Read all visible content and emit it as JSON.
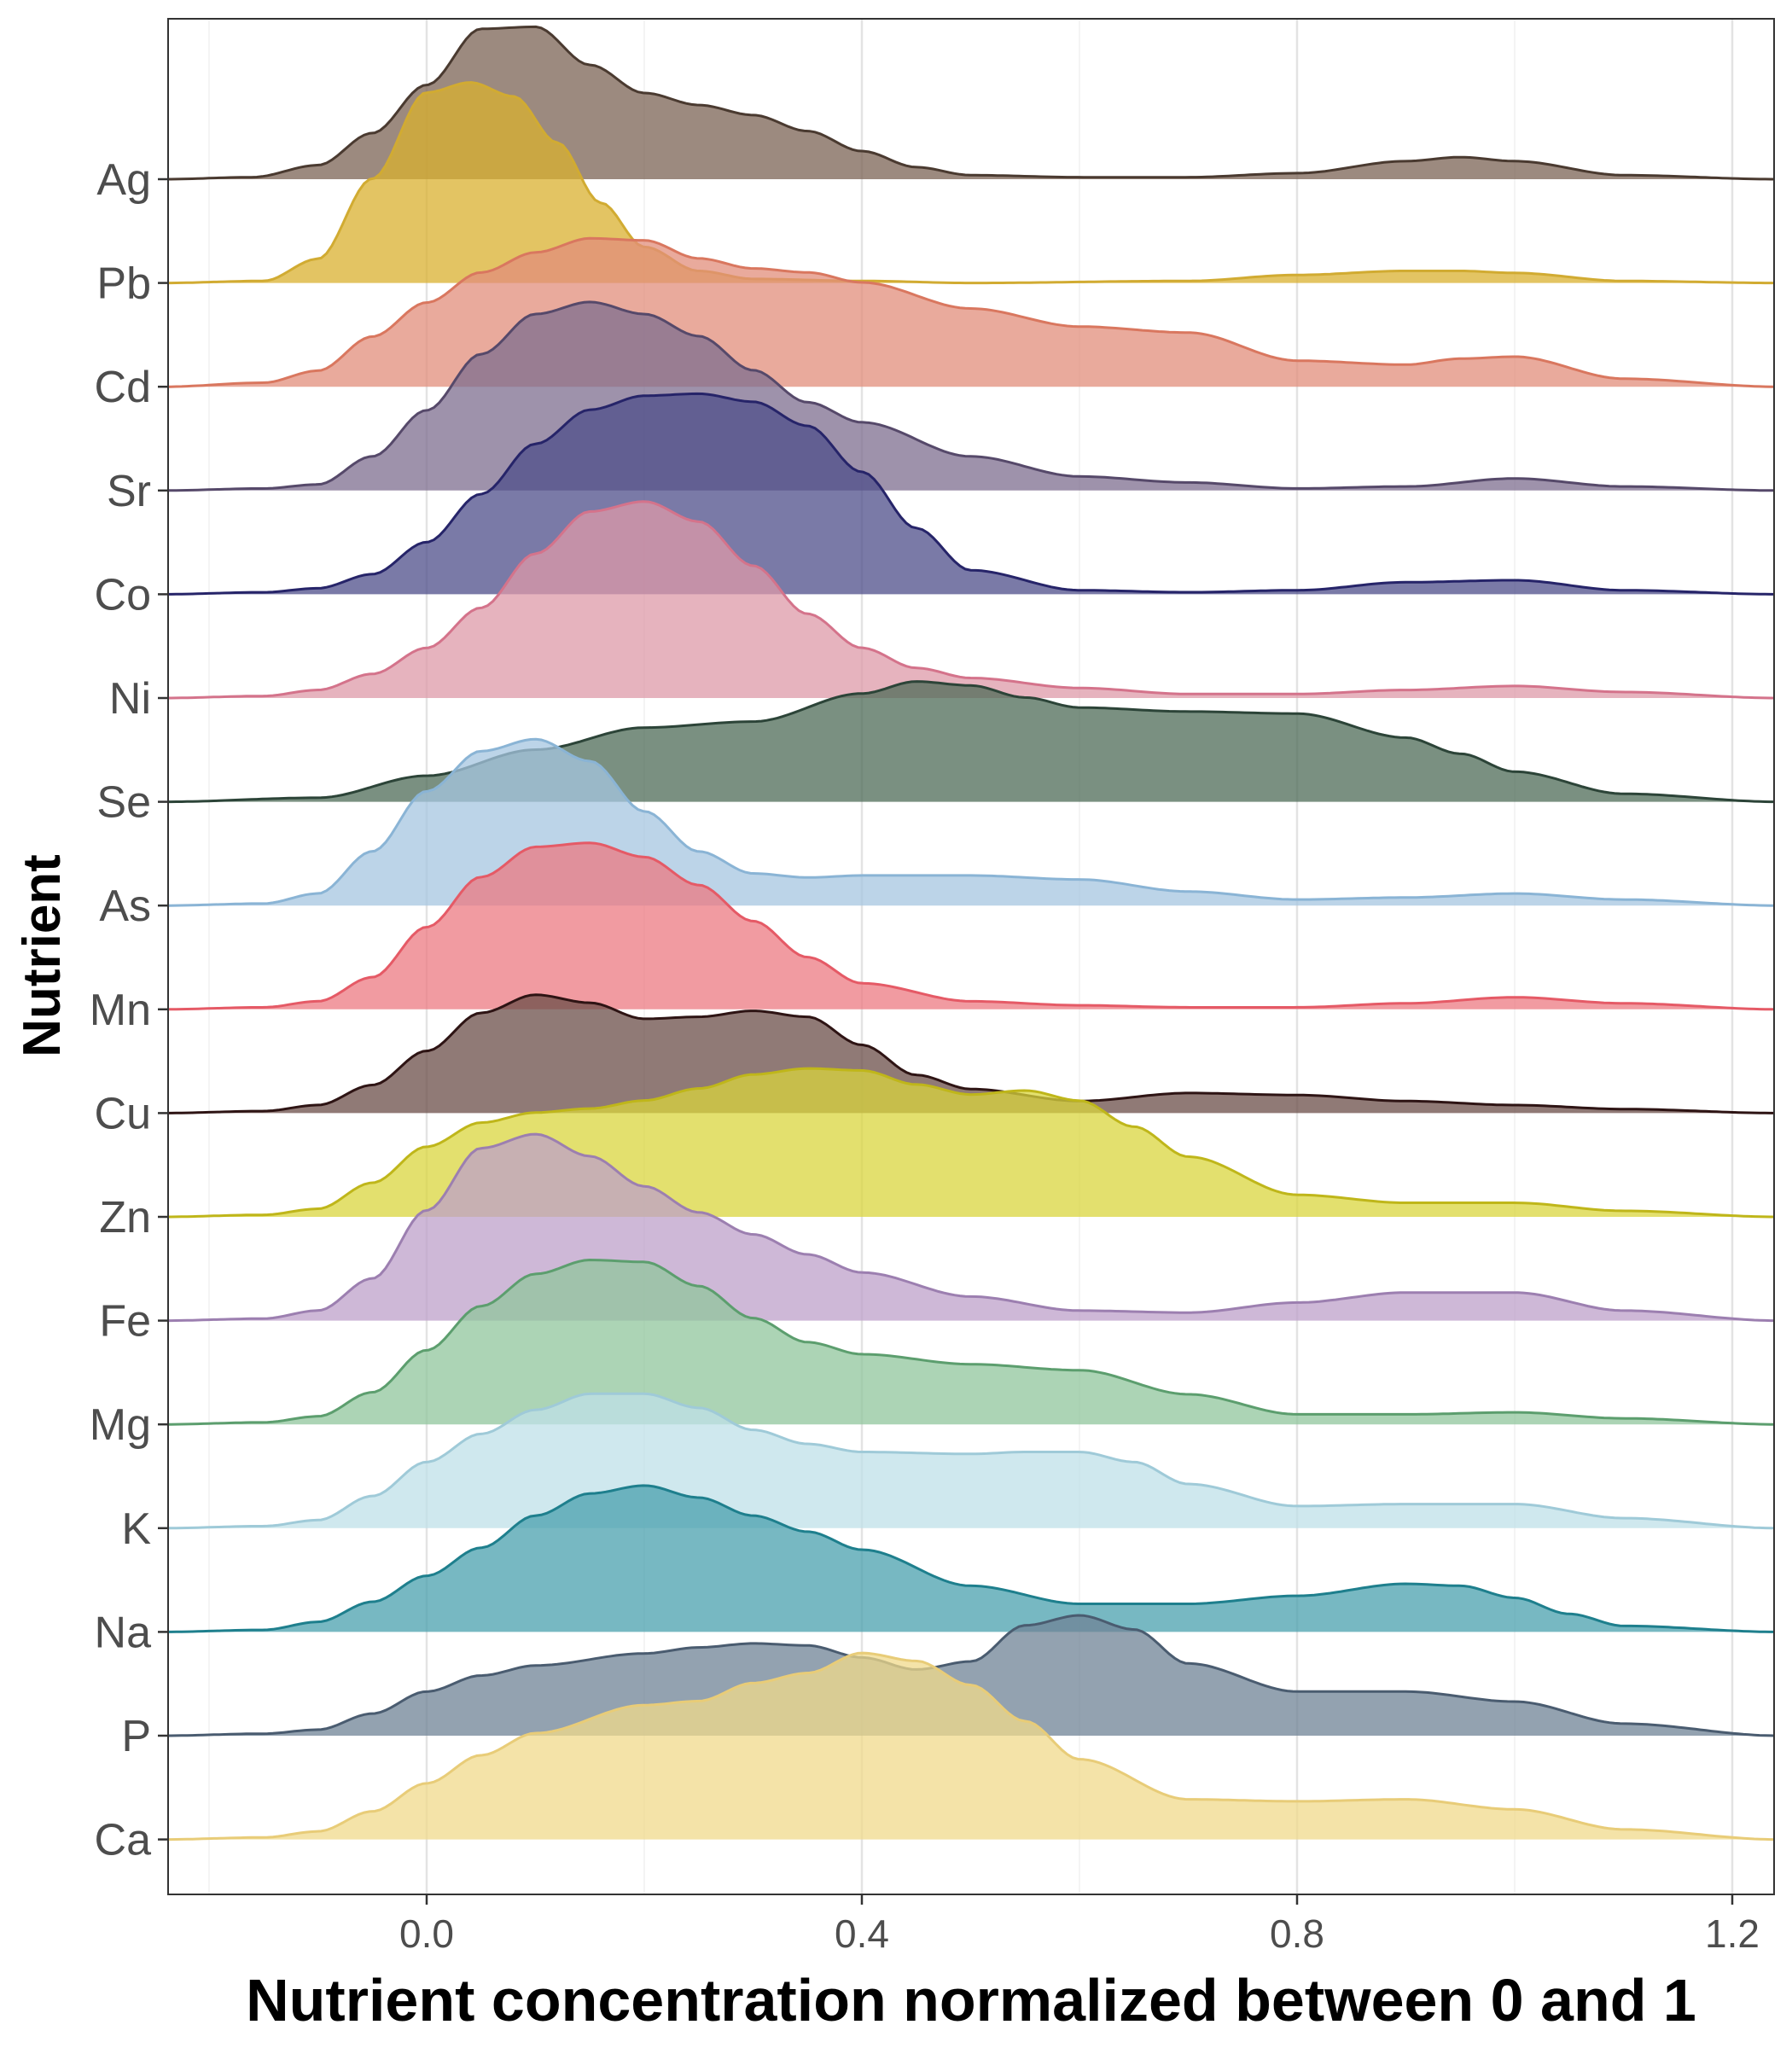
{
  "chart_data": {
    "type": "area",
    "subtype": "ridgeline-density",
    "xlabel": "Nutrient concentration normalized between 0 and 1",
    "ylabel": "Nutrient",
    "xlim": [
      -0.24,
      1.24
    ],
    "x_ticks": [
      0.0,
      0.4,
      0.8,
      1.2
    ],
    "x_tick_labels": [
      "0.0",
      "0.4",
      "0.8",
      "1.2"
    ],
    "grid": "vertical major and minor gridlines",
    "categories": [
      "Ag",
      "Pb",
      "Cd",
      "Sr",
      "Co",
      "Ni",
      "Se",
      "As",
      "Mn",
      "Cu",
      "Zn",
      "Fe",
      "Mg",
      "K",
      "Na",
      "P",
      "Ca"
    ],
    "series": [
      {
        "name": "Ag",
        "fill": "#7b6354",
        "line": "#4a3a30",
        "x": [
          -0.24,
          -0.16,
          -0.1,
          -0.05,
          0.0,
          0.05,
          0.1,
          0.15,
          0.2,
          0.25,
          0.3,
          0.35,
          0.4,
          0.45,
          0.5,
          0.6,
          0.7,
          0.8,
          0.9,
          0.95,
          1.0,
          1.1,
          1.24
        ],
        "density": [
          0,
          0.01,
          0.07,
          0.23,
          0.47,
          0.75,
          0.76,
          0.57,
          0.43,
          0.37,
          0.32,
          0.24,
          0.14,
          0.06,
          0.02,
          0.01,
          0.01,
          0.03,
          0.09,
          0.11,
          0.09,
          0.02,
          0
        ]
      },
      {
        "name": "Pb",
        "fill": "#d9b02f",
        "line": "#d1ab32",
        "x": [
          -0.24,
          -0.15,
          -0.1,
          -0.05,
          0.0,
          0.04,
          0.08,
          0.12,
          0.16,
          0.2,
          0.25,
          0.3,
          0.4,
          0.5,
          0.7,
          0.8,
          0.9,
          0.95,
          1.0,
          1.1,
          1.24
        ],
        "density": [
          0,
          0.01,
          0.12,
          0.52,
          0.95,
          1.0,
          0.93,
          0.7,
          0.4,
          0.18,
          0.06,
          0.02,
          0.01,
          0,
          0.01,
          0.04,
          0.06,
          0.06,
          0.05,
          0.01,
          0
        ]
      },
      {
        "name": "Cd",
        "fill": "#e28e7b",
        "line": "#d9775f",
        "x": [
          -0.24,
          -0.15,
          -0.1,
          -0.05,
          0.0,
          0.05,
          0.1,
          0.15,
          0.2,
          0.25,
          0.3,
          0.35,
          0.4,
          0.5,
          0.6,
          0.7,
          0.8,
          0.9,
          0.95,
          1.0,
          1.1,
          1.24
        ],
        "density": [
          0,
          0.02,
          0.08,
          0.25,
          0.42,
          0.57,
          0.67,
          0.74,
          0.73,
          0.64,
          0.59,
          0.57,
          0.52,
          0.39,
          0.3,
          0.27,
          0.13,
          0.11,
          0.14,
          0.15,
          0.04,
          0
        ]
      },
      {
        "name": "Sr",
        "fill": "#7d6e8f",
        "line": "#56496a",
        "x": [
          -0.24,
          -0.15,
          -0.1,
          -0.05,
          0.0,
          0.05,
          0.1,
          0.15,
          0.2,
          0.25,
          0.3,
          0.35,
          0.4,
          0.5,
          0.6,
          0.7,
          0.8,
          0.9,
          1.0,
          1.1,
          1.24
        ],
        "density": [
          0,
          0.01,
          0.03,
          0.17,
          0.4,
          0.68,
          0.88,
          0.94,
          0.88,
          0.77,
          0.6,
          0.44,
          0.34,
          0.17,
          0.07,
          0.04,
          0.01,
          0.02,
          0.06,
          0.02,
          0
        ]
      },
      {
        "name": "Co",
        "fill": "#4e4d8a",
        "line": "#262469",
        "x": [
          -0.24,
          -0.15,
          -0.1,
          -0.05,
          0.0,
          0.05,
          0.1,
          0.15,
          0.2,
          0.25,
          0.3,
          0.35,
          0.4,
          0.45,
          0.5,
          0.6,
          0.7,
          0.8,
          0.9,
          1.0,
          1.1,
          1.24
        ],
        "density": [
          0,
          0.01,
          0.03,
          0.1,
          0.26,
          0.5,
          0.75,
          0.92,
          0.99,
          1.0,
          0.96,
          0.84,
          0.61,
          0.33,
          0.12,
          0.02,
          0.01,
          0.02,
          0.06,
          0.07,
          0.02,
          0
        ]
      },
      {
        "name": "Ni",
        "fill": "#de99a8",
        "line": "#d4738b",
        "x": [
          -0.24,
          -0.15,
          -0.1,
          -0.05,
          0.0,
          0.05,
          0.1,
          0.15,
          0.2,
          0.25,
          0.3,
          0.35,
          0.4,
          0.45,
          0.5,
          0.6,
          0.7,
          0.8,
          0.9,
          1.0,
          1.1,
          1.24
        ],
        "density": [
          0,
          0.01,
          0.04,
          0.12,
          0.25,
          0.45,
          0.72,
          0.93,
          0.98,
          0.88,
          0.66,
          0.42,
          0.25,
          0.15,
          0.1,
          0.05,
          0.02,
          0.02,
          0.04,
          0.06,
          0.03,
          0
        ]
      },
      {
        "name": "Se",
        "fill": "#4d6b57",
        "line": "#2c4438",
        "x": [
          -0.24,
          -0.1,
          0.0,
          0.1,
          0.2,
          0.3,
          0.4,
          0.45,
          0.5,
          0.55,
          0.6,
          0.7,
          0.8,
          0.9,
          0.95,
          1.0,
          1.1,
          1.24
        ],
        "density": [
          0,
          0.02,
          0.13,
          0.26,
          0.37,
          0.4,
          0.54,
          0.6,
          0.58,
          0.52,
          0.47,
          0.45,
          0.44,
          0.32,
          0.24,
          0.15,
          0.04,
          0
        ]
      },
      {
        "name": "As",
        "fill": "#a5c6e0",
        "line": "#8ab4d5",
        "x": [
          -0.24,
          -0.15,
          -0.1,
          -0.05,
          0.0,
          0.05,
          0.1,
          0.15,
          0.2,
          0.25,
          0.3,
          0.35,
          0.4,
          0.5,
          0.6,
          0.7,
          0.8,
          0.9,
          1.0,
          1.1,
          1.24
        ],
        "density": [
          0,
          0.01,
          0.06,
          0.27,
          0.57,
          0.77,
          0.83,
          0.72,
          0.47,
          0.27,
          0.16,
          0.14,
          0.15,
          0.15,
          0.13,
          0.07,
          0.03,
          0.04,
          0.06,
          0.03,
          0
        ]
      },
      {
        "name": "Mn",
        "fill": "#ec7a82",
        "line": "#e55a66",
        "x": [
          -0.24,
          -0.15,
          -0.1,
          -0.05,
          0.0,
          0.05,
          0.1,
          0.15,
          0.2,
          0.25,
          0.3,
          0.35,
          0.4,
          0.5,
          0.6,
          0.7,
          0.8,
          0.9,
          1.0,
          1.1,
          1.24
        ],
        "density": [
          0,
          0.01,
          0.04,
          0.16,
          0.41,
          0.66,
          0.81,
          0.83,
          0.76,
          0.62,
          0.44,
          0.26,
          0.13,
          0.04,
          0.02,
          0.01,
          0.01,
          0.03,
          0.06,
          0.03,
          0
        ]
      },
      {
        "name": "Cu",
        "fill": "#6b4e48",
        "line": "#2e1414",
        "x": [
          -0.24,
          -0.15,
          -0.1,
          -0.05,
          0.0,
          0.05,
          0.1,
          0.15,
          0.2,
          0.25,
          0.3,
          0.35,
          0.4,
          0.45,
          0.5,
          0.6,
          0.7,
          0.8,
          0.9,
          1.0,
          1.1,
          1.24
        ],
        "density": [
          0,
          0.01,
          0.04,
          0.14,
          0.31,
          0.5,
          0.59,
          0.55,
          0.47,
          0.48,
          0.51,
          0.48,
          0.34,
          0.19,
          0.12,
          0.06,
          0.1,
          0.09,
          0.06,
          0.04,
          0.02,
          0
        ]
      },
      {
        "name": "Zn",
        "fill": "#d9d63d",
        "line": "#bfb61a",
        "x": [
          -0.24,
          -0.15,
          -0.1,
          -0.05,
          0.0,
          0.05,
          0.1,
          0.15,
          0.2,
          0.25,
          0.3,
          0.35,
          0.4,
          0.45,
          0.5,
          0.55,
          0.6,
          0.65,
          0.7,
          0.8,
          0.9,
          1.0,
          1.1,
          1.24
        ],
        "density": [
          0,
          0.01,
          0.04,
          0.17,
          0.35,
          0.47,
          0.52,
          0.54,
          0.58,
          0.64,
          0.71,
          0.74,
          0.73,
          0.66,
          0.61,
          0.63,
          0.58,
          0.45,
          0.3,
          0.11,
          0.07,
          0.07,
          0.03,
          0
        ]
      },
      {
        "name": "Fe",
        "fill": "#bea0c9",
        "line": "#9c7fb0",
        "x": [
          -0.24,
          -0.15,
          -0.1,
          -0.05,
          0.0,
          0.05,
          0.1,
          0.15,
          0.2,
          0.25,
          0.3,
          0.35,
          0.4,
          0.5,
          0.6,
          0.7,
          0.8,
          0.9,
          1.0,
          1.1,
          1.24
        ],
        "density": [
          0,
          0.01,
          0.05,
          0.21,
          0.55,
          0.86,
          0.93,
          0.82,
          0.67,
          0.54,
          0.43,
          0.33,
          0.24,
          0.12,
          0.05,
          0.04,
          0.09,
          0.14,
          0.14,
          0.05,
          0
        ]
      },
      {
        "name": "Mg",
        "fill": "#90c69c",
        "line": "#5c9e6e",
        "x": [
          -0.24,
          -0.15,
          -0.1,
          -0.05,
          0.0,
          0.05,
          0.1,
          0.15,
          0.2,
          0.25,
          0.3,
          0.35,
          0.4,
          0.5,
          0.6,
          0.7,
          0.8,
          0.9,
          1.0,
          1.1,
          1.24
        ],
        "density": [
          0,
          0.01,
          0.04,
          0.16,
          0.37,
          0.59,
          0.75,
          0.82,
          0.81,
          0.69,
          0.53,
          0.41,
          0.35,
          0.3,
          0.27,
          0.15,
          0.05,
          0.05,
          0.06,
          0.03,
          0
        ]
      },
      {
        "name": "K",
        "fill": "#bfe0e8",
        "line": "#9fcad8",
        "x": [
          -0.24,
          -0.15,
          -0.1,
          -0.05,
          0.0,
          0.05,
          0.1,
          0.15,
          0.2,
          0.25,
          0.3,
          0.35,
          0.4,
          0.5,
          0.55,
          0.6,
          0.65,
          0.7,
          0.8,
          0.9,
          1.0,
          1.1,
          1.24
        ],
        "density": [
          0,
          0.01,
          0.04,
          0.16,
          0.33,
          0.47,
          0.59,
          0.67,
          0.67,
          0.6,
          0.49,
          0.42,
          0.38,
          0.37,
          0.38,
          0.38,
          0.33,
          0.22,
          0.11,
          0.12,
          0.12,
          0.05,
          0
        ]
      },
      {
        "name": "Na",
        "fill": "#4aa0ad",
        "line": "#1e7f8d",
        "x": [
          -0.24,
          -0.15,
          -0.1,
          -0.05,
          0.0,
          0.05,
          0.1,
          0.15,
          0.2,
          0.25,
          0.3,
          0.35,
          0.4,
          0.5,
          0.6,
          0.7,
          0.8,
          0.9,
          0.95,
          1.0,
          1.05,
          1.1,
          1.24
        ],
        "density": [
          0,
          0.01,
          0.05,
          0.15,
          0.28,
          0.42,
          0.58,
          0.69,
          0.73,
          0.67,
          0.58,
          0.5,
          0.41,
          0.23,
          0.14,
          0.14,
          0.18,
          0.24,
          0.23,
          0.17,
          0.09,
          0.03,
          0
        ]
      },
      {
        "name": "P",
        "fill": "#6f8396",
        "line": "#4a5c70",
        "x": [
          -0.24,
          -0.15,
          -0.1,
          -0.05,
          0.0,
          0.05,
          0.1,
          0.2,
          0.25,
          0.3,
          0.35,
          0.4,
          0.45,
          0.5,
          0.55,
          0.6,
          0.65,
          0.7,
          0.8,
          0.9,
          1.0,
          1.1,
          1.24
        ],
        "density": [
          0,
          0.01,
          0.03,
          0.11,
          0.22,
          0.3,
          0.35,
          0.41,
          0.44,
          0.46,
          0.45,
          0.39,
          0.33,
          0.37,
          0.55,
          0.6,
          0.53,
          0.36,
          0.22,
          0.22,
          0.17,
          0.06,
          0
        ]
      },
      {
        "name": "Ca",
        "fill": "#f0d98b",
        "line": "#e8cc78",
        "x": [
          -0.24,
          -0.15,
          -0.1,
          -0.05,
          0.0,
          0.05,
          0.1,
          0.2,
          0.25,
          0.3,
          0.35,
          0.4,
          0.45,
          0.5,
          0.55,
          0.6,
          0.7,
          0.8,
          0.9,
          1.0,
          1.1,
          1.24
        ],
        "density": [
          0,
          0.01,
          0.04,
          0.14,
          0.28,
          0.42,
          0.53,
          0.67,
          0.69,
          0.78,
          0.83,
          0.93,
          0.89,
          0.77,
          0.59,
          0.4,
          0.2,
          0.19,
          0.2,
          0.15,
          0.05,
          0
        ]
      }
    ]
  }
}
